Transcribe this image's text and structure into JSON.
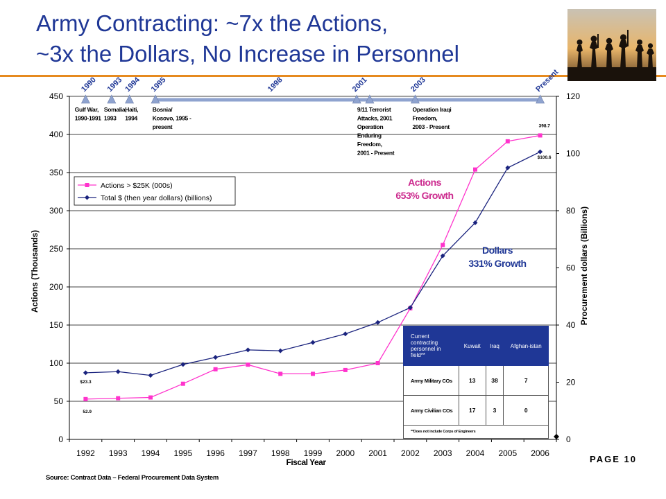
{
  "slide": {
    "title_line1": "Army Contracting: ~7x the Actions,",
    "title_line2": "~3x the Dollars, No Increase in Personnel",
    "page": "PAGE 10",
    "source": "Source: Contract Data – Federal Procurement Data System"
  },
  "chart_data": {
    "type": "line",
    "categories": [
      "1992",
      "1993",
      "1994",
      "1995",
      "1996",
      "1997",
      "1998",
      "1999",
      "2000",
      "2001",
      "2002",
      "2003",
      "2004",
      "2005",
      "2006"
    ],
    "xlabel": "Fiscal Year",
    "ylabel_left": "Actions (Thousands)",
    "ylabel_right": "Procurement dollars (Billions)",
    "ylim_left": [
      0,
      450
    ],
    "yticks_left": [
      "0",
      "50",
      "100",
      "150",
      "200",
      "250",
      "300",
      "350",
      "400",
      "450"
    ],
    "ylim_right": [
      0,
      120
    ],
    "yticks_right": [
      "0",
      "20",
      "40",
      "60",
      "80",
      "100",
      "120"
    ],
    "grid": true,
    "legend": {
      "placement": "upper-left",
      "entries": [
        "Actions > $25K (000s)",
        "Total $ (then year dollars) (billions)"
      ]
    },
    "series": [
      {
        "name": "Actions > $25K (000s)",
        "axis": "left",
        "color": "#ff33cc",
        "values": [
          52.9,
          54,
          55,
          73,
          92,
          98,
          86,
          86,
          91,
          100,
          172,
          255,
          354,
          391,
          398.7
        ]
      },
      {
        "name": "Total $ (then year dollars) (billions)",
        "axis": "right",
        "color": "#1a237e",
        "values": [
          23.3,
          23.7,
          22.4,
          26.2,
          28.7,
          31.3,
          31.0,
          33.9,
          36.9,
          40.9,
          46.1,
          64.2,
          75.8,
          95.0,
          100.6
        ]
      }
    ],
    "data_labels": {
      "actions_start": "52.9",
      "actions_end": "398.7",
      "dollars_start": "$23.3",
      "dollars_end": "$100.6"
    },
    "annotations": {
      "actions_growth": [
        "Actions",
        "653% Growth"
      ],
      "dollars_growth": [
        "Dollars",
        "331% Growth"
      ]
    },
    "timeline": {
      "color": "#8fa3cf",
      "markers": [
        {
          "label": "1990",
          "x_pos": 0.5
        },
        {
          "label": "1993",
          "x_pos": 1.3
        },
        {
          "label": "1994",
          "x_pos": 1.85
        },
        {
          "label": "1995",
          "x_pos": 2.65
        },
        {
          "label": "2001",
          "x_pos": 8.85
        },
        {
          "label": "",
          "x_pos": 9.25
        },
        {
          "label": "2003",
          "x_pos": 10.65
        },
        {
          "label": "Present",
          "x_pos": 14.5
        }
      ],
      "mid_label": {
        "label": "1998",
        "x_pos": 6.2
      },
      "events": [
        {
          "lines": [
            "Gulf War,",
            "1990-1991"
          ],
          "x_pos": 0.55
        },
        {
          "lines": [
            "Somalia,",
            "1993"
          ],
          "x_pos": 1.45
        },
        {
          "lines": [
            "Haiti,",
            "1994"
          ],
          "x_pos": 2.1
        },
        {
          "lines": [
            "Bosnia/",
            "Kosovo, 1995 -",
            "present"
          ],
          "x_pos": 2.9
        },
        {
          "lines": [
            "9/11 Terrorist",
            "Attacks, 2001",
            "Operation",
            "Enduring",
            "Freedom,",
            "2001 - Present"
          ],
          "x_pos": 9.25
        },
        {
          "lines": [
            "Operation Iraqi",
            "Freedom,",
            "2003 - Present"
          ],
          "x_pos": 10.95
        }
      ]
    }
  },
  "personnel_table": {
    "header": [
      "Current contracting personnel in field**",
      "Kuwait",
      "Iraq",
      "Afghan-istan"
    ],
    "rows": [
      {
        "label": "Army Military COs",
        "values": [
          "13",
          "38",
          "7"
        ]
      },
      {
        "label": "Army Civilian COs",
        "values": [
          "17",
          "3",
          "0"
        ]
      }
    ],
    "footnote": "**Does not include Corps of Engineers"
  },
  "photo": {
    "icon": "soldiers-silhouette-photo"
  }
}
